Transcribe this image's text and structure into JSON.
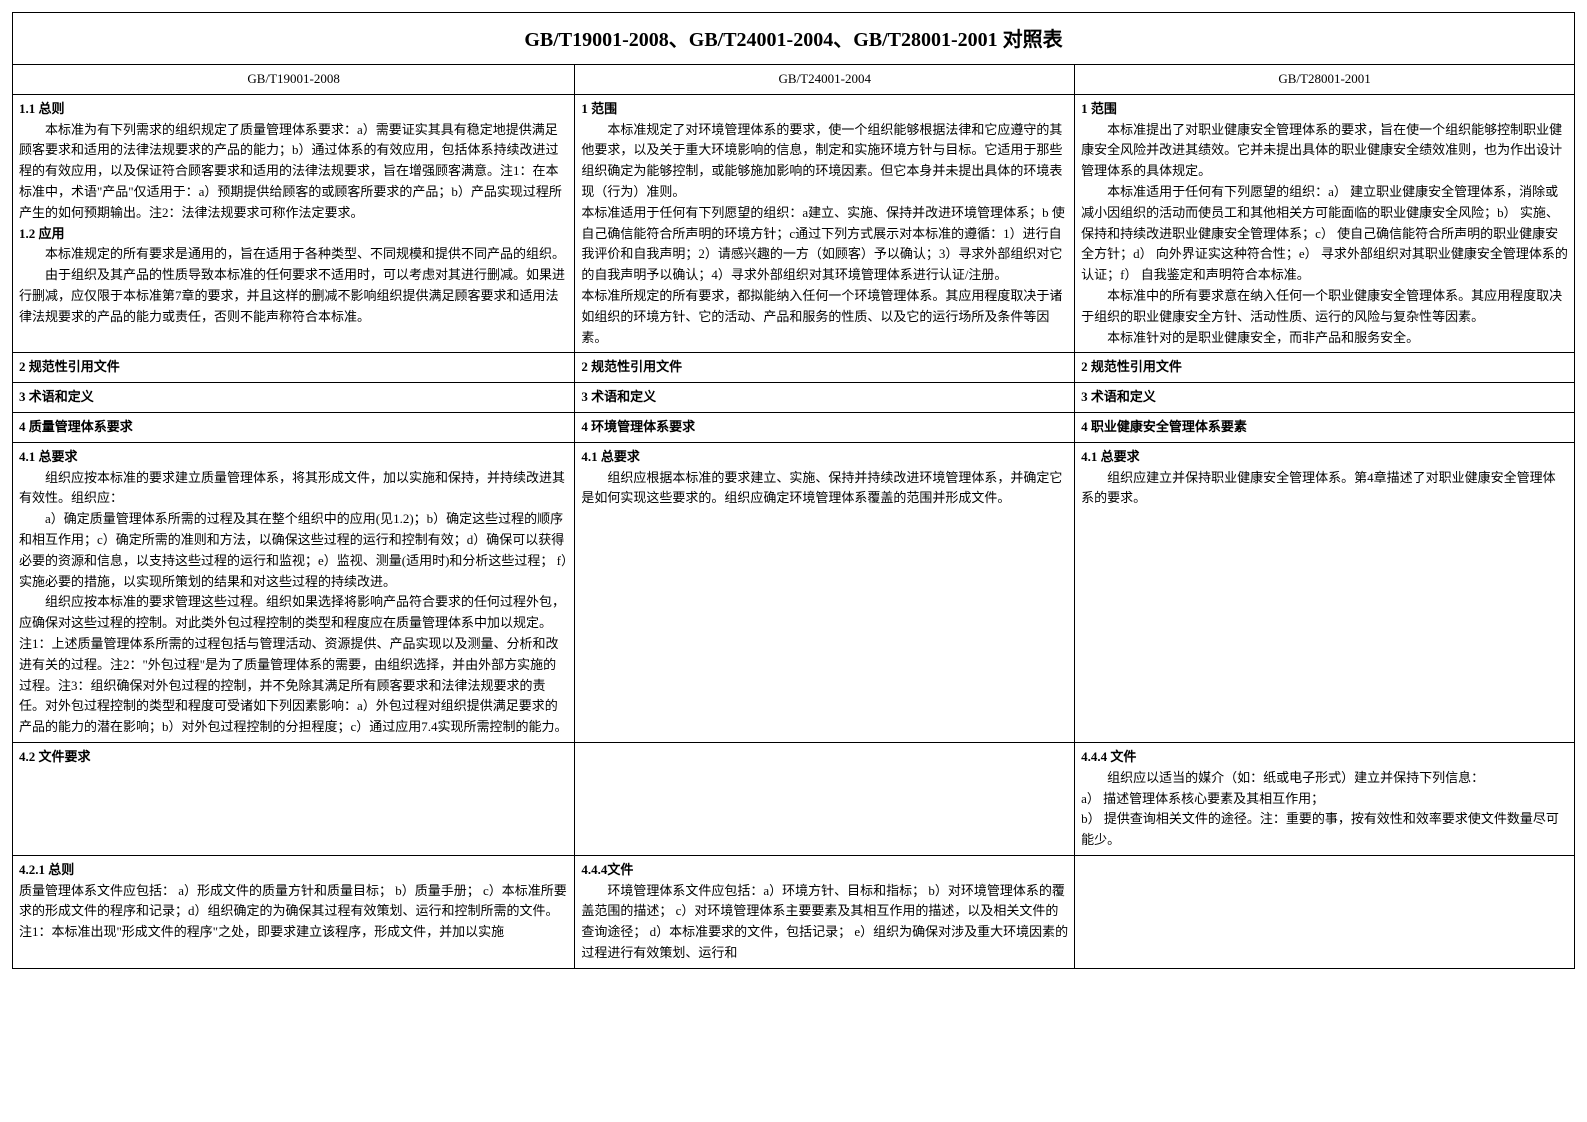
{
  "title": "GB/T19001-2008、GB/T24001-2004、GB/T28001-2001 对照表",
  "headers": {
    "c1": "GB/T19001-2008",
    "c2": "GB/T24001-2004",
    "c3": "GB/T28001-2001"
  },
  "row1": {
    "c1_h1": "1.1 总则",
    "c1_p1": "本标准为有下列需求的组织规定了质量管理体系要求：a）需要证实其具有稳定地提供满足顾客要求和适用的法律法规要求的产品的能力；b）通过体系的有效应用，包括体系持续改进过程的有效应用，以及保证符合顾客要求和适用的法律法规要求，旨在增强顾客满意。注1：在本标准中，术语\"产品\"仅适用于：a）预期提供给顾客的或顾客所要求的产品；b）产品实现过程所产生的如何预期输出。注2：法律法规要求可称作法定要求。",
    "c1_h2": "1.2 应用",
    "c1_p2": "本标准规定的所有要求是通用的，旨在适用于各种类型、不同规模和提供不同产品的组织。",
    "c1_p3": "由于组织及其产品的性质导致本标准的任何要求不适用时，可以考虑对其进行删减。如果进行删减，应仅限于本标准第7章的要求，并且这样的删减不影响组织提供满足顾客要求和适用法律法规要求的产品的能力或责任，否则不能声称符合本标准。",
    "c2_h": "1 范围",
    "c2_p1": "本标准规定了对环境管理体系的要求，使一个组织能够根据法律和它应遵守的其他要求，以及关于重大环境影响的信息，制定和实施环境方针与目标。它适用于那些组织确定为能够控制，或能够施加影响的环境因素。但它本身并未提出具体的环境表现（行为）准则。",
    "c2_p2": "本标准适用于任何有下列愿望的组织：a建立、实施、保持并改进环境管理体系；b 使自己确信能符合所声明的环境方针；c通过下列方式展示对本标准的遵循：1）进行自我评价和自我声明；2）请感兴趣的一方（如顾客）予以确认；3）寻求外部组织对它的自我声明予以确认；4）寻求外部组织对其环境管理体系进行认证/注册。",
    "c2_p3": "本标准所规定的所有要求，都拟能纳入任何一个环境管理体系。其应用程度取决于诸如组织的环境方针、它的活动、产品和服务的性质、以及它的运行场所及条件等因素。",
    "c3_h": "1 范围",
    "c3_p1": "本标准提出了对职业健康安全管理体系的要求，旨在使一个组织能够控制职业健康安全风险并改进其绩效。它并未提出具体的职业健康安全绩效准则，也为作出设计管理体系的具体规定。",
    "c3_p2": "本标准适用于任何有下列愿望的组织：a） 建立职业健康安全管理体系，消除或减小因组织的活动而使员工和其他相关方可能面临的职业健康安全风险；b） 实施、保持和持续改进职业健康安全管理体系；c） 使自己确信能符合所声明的职业健康安全方针；d） 向外界证实这种符合性；e） 寻求外部组织对其职业健康安全管理体系的认证；f） 自我鉴定和声明符合本标准。",
    "c3_p3": "本标准中的所有要求意在纳入任何一个职业健康安全管理体系。其应用程度取决于组织的职业健康安全方针、活动性质、运行的风险与复杂性等因素。",
    "c3_p4": "本标准针对的是职业健康安全，而非产品和服务安全。"
  },
  "row2": {
    "c1": "2 规范性引用文件",
    "c2": "2 规范性引用文件",
    "c3": "2 规范性引用文件"
  },
  "row3": {
    "c1": "3 术语和定义",
    "c2": "3 术语和定义",
    "c3": "3 术语和定义"
  },
  "row4": {
    "c1": "4 质量管理体系要求",
    "c2": "4 环境管理体系要求",
    "c3": "4 职业健康安全管理体系要素"
  },
  "row5": {
    "c1_h": "4.1 总要求",
    "c1_p1": "组织应按本标准的要求建立质量管理体系，将其形成文件，加以实施和保持，并持续改进其有效性。组织应：",
    "c1_p2": "a）确定质量管理体系所需的过程及其在整个组织中的应用(见1.2)；b）确定这些过程的顺序和相互作用；c）确定所需的准则和方法，以确保这些过程的运行和控制有效；d）确保可以获得必要的资源和信息，以支持这些过程的运行和监视；e）监视、测量(适用时)和分析这些过程； f）实施必要的措施，以实现所策划的结果和对这些过程的持续改进。",
    "c1_p3": "组织应按本标准的要求管理这些过程。组织如果选择将影响产品符合要求的任何过程外包，应确保对这些过程的控制。对此类外包过程控制的类型和程度应在质量管理体系中加以规定。",
    "c1_p4": "注1：上述质量管理体系所需的过程包括与管理活动、资源提供、产品实现以及测量、分析和改进有关的过程。注2：\"外包过程\"是为了质量管理体系的需要，由组织选择，并由外部方实施的过程。注3：组织确保对外包过程的控制，并不免除其满足所有顾客要求和法律法规要求的责任。对外包过程控制的类型和程度可受诸如下列因素影响：a）外包过程对组织提供满足要求的产品的能力的潜在影响；b）对外包过程控制的分担程度；c）通过应用7.4实现所需控制的能力。",
    "c2_h": "4.1 总要求",
    "c2_p1": "组织应根据本标准的要求建立、实施、保持并持续改进环境管理体系，并确定它是如何实现这些要求的。组织应确定环境管理体系覆盖的范围并形成文件。",
    "c3_h": "4.1 总要求",
    "c3_p1": "组织应建立并保持职业健康安全管理体系。第4章描述了对职业健康安全管理体系的要求。"
  },
  "row6": {
    "c1_h": "4.2 文件要求",
    "c3_h": "4.4.4 文件",
    "c3_p1": "组织应以适当的媒介（如：纸或电子形式）建立并保持下列信息：",
    "c3_p2": "a） 描述管理体系核心要素及其相互作用；",
    "c3_p3": "b） 提供查询相关文件的途径。注：重要的事，按有效性和效率要求使文件数量尽可能少。"
  },
  "row7": {
    "c1_h": "4.2.1 总则",
    "c1_p1": "质量管理体系文件应包括： a）形成文件的质量方针和质量目标； b）质量手册； c）本标准所要求的形成文件的程序和记录；d）组织确定的为确保其过程有效策划、运行和控制所需的文件。",
    "c1_p2": "注1：本标准出现\"形成文件的程序\"之处，即要求建立该程序，形成文件，并加以实施",
    "c2_h": "4.4.4文件",
    "c2_p1": "环境管理体系文件应包括：a）环境方针、目标和指标； b）对环境管理体系的覆盖范围的描述； c）对环境管理体系主要要素及其相互作用的描述，以及相关文件的查询途径； d）本标准要求的文件，包括记录； e）组织为确保对涉及重大环境因素的过程进行有效策划、运行和"
  }
}
